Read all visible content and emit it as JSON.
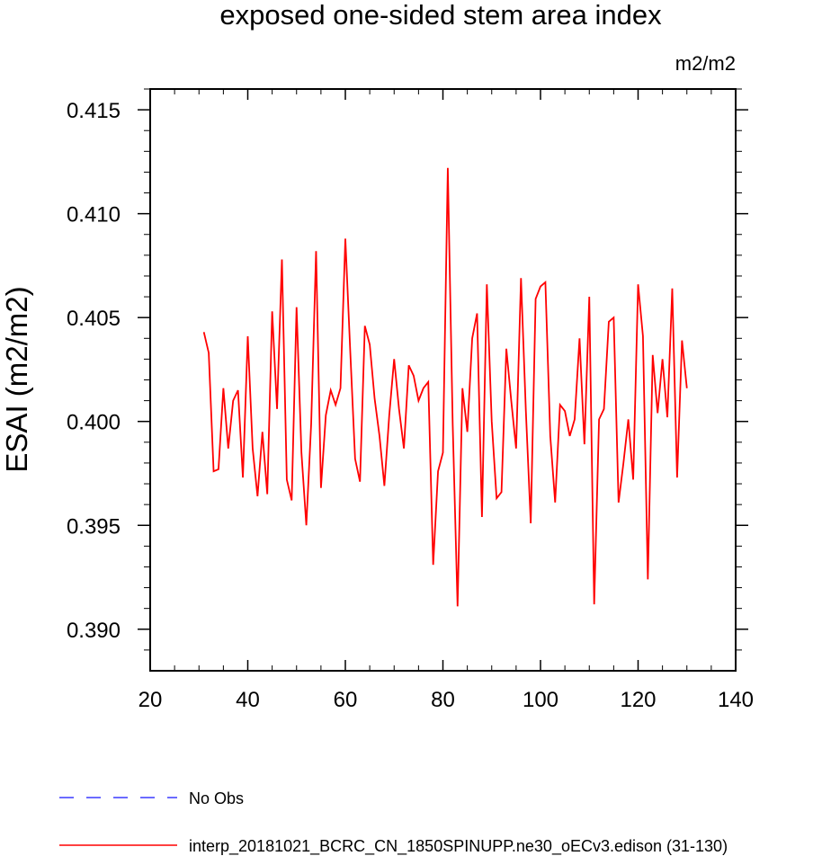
{
  "chart_data": {
    "type": "line",
    "title": "exposed one-sided stem area index",
    "units": "m2/m2",
    "ylabel": "ESAI  (m2/m2)",
    "xlabel": "",
    "xlim": [
      20,
      140
    ],
    "ylim": [
      0.388,
      0.416
    ],
    "x_ticks": [
      20,
      40,
      60,
      80,
      100,
      120,
      140
    ],
    "x_tick_labels": [
      "20",
      "40",
      "60",
      "80",
      "100",
      "120",
      "140"
    ],
    "y_ticks": [
      0.39,
      0.395,
      0.4,
      0.405,
      0.41,
      0.415
    ],
    "y_tick_labels": [
      "0.390",
      "0.395",
      "0.400",
      "0.405",
      "0.410",
      "0.415"
    ],
    "series": [
      {
        "name": "No Obs",
        "color": "#3a3aff",
        "dash": "dashed",
        "x": [],
        "y": []
      },
      {
        "name": "interp_20181021_BCRC_CN_1850SPINUPP.ne30_oECv3.edison (31-130)",
        "color": "#ff0000",
        "dash": "solid",
        "x": [
          31,
          32,
          33,
          34,
          35,
          36,
          37,
          38,
          39,
          40,
          41,
          42,
          43,
          44,
          45,
          46,
          47,
          48,
          49,
          50,
          51,
          52,
          53,
          54,
          55,
          56,
          57,
          58,
          59,
          60,
          61,
          62,
          63,
          64,
          65,
          66,
          67,
          68,
          69,
          70,
          71,
          72,
          73,
          74,
          75,
          76,
          77,
          78,
          79,
          80,
          81,
          82,
          83,
          84,
          85,
          86,
          87,
          88,
          89,
          90,
          91,
          92,
          93,
          94,
          95,
          96,
          97,
          98,
          99,
          100,
          101,
          102,
          103,
          104,
          105,
          106,
          107,
          108,
          109,
          110,
          111,
          112,
          113,
          114,
          115,
          116,
          117,
          118,
          119,
          120,
          121,
          122,
          123,
          124,
          125,
          126,
          127,
          128,
          129,
          130
        ],
        "y": [
          0.4043,
          0.4033,
          0.3976,
          0.3977,
          0.4016,
          0.3987,
          0.401,
          0.4015,
          0.3973,
          0.4041,
          0.3987,
          0.3964,
          0.3995,
          0.3965,
          0.4053,
          0.4006,
          0.4078,
          0.3972,
          0.3962,
          0.4055,
          0.3985,
          0.395,
          0.3999,
          0.4082,
          0.3968,
          0.4003,
          0.4015,
          0.4008,
          0.4016,
          0.4088,
          0.4034,
          0.3982,
          0.3971,
          0.4046,
          0.4037,
          0.4011,
          0.3993,
          0.3969,
          0.4003,
          0.403,
          0.4006,
          0.3987,
          0.4027,
          0.4022,
          0.401,
          0.4016,
          0.4019,
          0.3931,
          0.3976,
          0.3985,
          0.4122,
          0.3999,
          0.3911,
          0.4016,
          0.3995,
          0.404,
          0.4052,
          0.3954,
          0.4066,
          0.4,
          0.3963,
          0.3966,
          0.4035,
          0.401,
          0.3987,
          0.4069,
          0.4005,
          0.3951,
          0.4059,
          0.4065,
          0.4067,
          0.3993,
          0.3961,
          0.4008,
          0.4005,
          0.3993,
          0.4001,
          0.404,
          0.3989,
          0.406,
          0.3912,
          0.4001,
          0.4006,
          0.4048,
          0.405,
          0.3961,
          0.398,
          0.4001,
          0.3972,
          0.4066,
          0.4041,
          0.3924,
          0.4032,
          0.4004,
          0.403,
          0.4002,
          0.4064,
          0.3973,
          0.4039,
          0.4016
        ]
      }
    ],
    "legend": {
      "position": "bottom-left",
      "entries": [
        {
          "label": "No Obs",
          "color": "#3a3aff",
          "dash": "dashed"
        },
        {
          "label": "interp_20181021_BCRC_CN_1850SPINUPP.ne30_oECv3.edison (31-130)",
          "color": "#ff0000",
          "dash": "solid"
        }
      ]
    },
    "grid": false
  }
}
